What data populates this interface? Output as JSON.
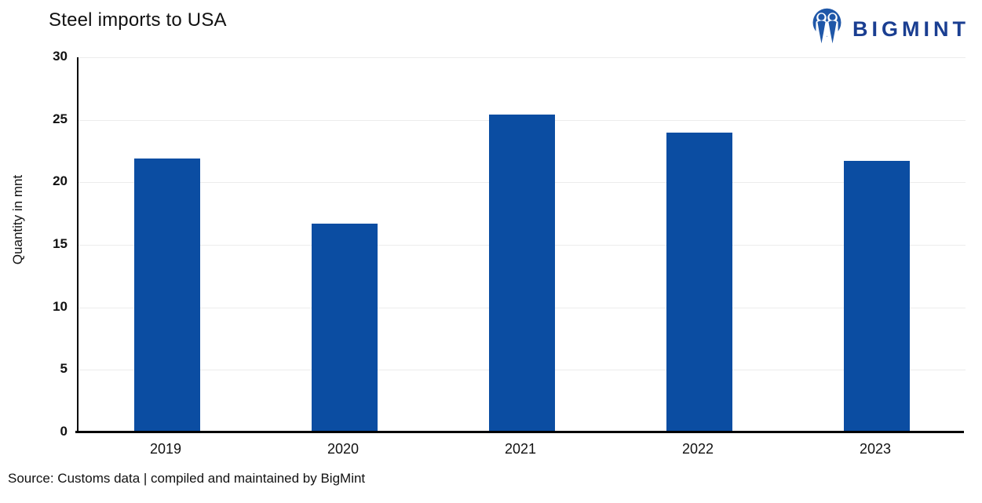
{
  "title": "Steel imports to USA",
  "logo": {
    "text": "BIGMINT",
    "mark_color": "#1f57a8",
    "text_color": "#1a3e91"
  },
  "source": "Source: Customs data | compiled and maintained by BigMint",
  "colors": {
    "bar": "#0b4da2",
    "axis": "#000000",
    "gridline": "#ececec",
    "text": "#111111"
  },
  "chart_data": {
    "type": "bar",
    "categories": [
      "2019",
      "2020",
      "2021",
      "2022",
      "2023"
    ],
    "values": [
      21.9,
      16.7,
      25.4,
      24.0,
      21.7
    ],
    "title": "Steel imports to USA",
    "xlabel": "",
    "ylabel": "Quantity in mnt",
    "ylim": [
      0,
      30
    ],
    "ytick_step": 5,
    "grid": true,
    "legend": "none",
    "bar_color": "#0b4da2"
  }
}
